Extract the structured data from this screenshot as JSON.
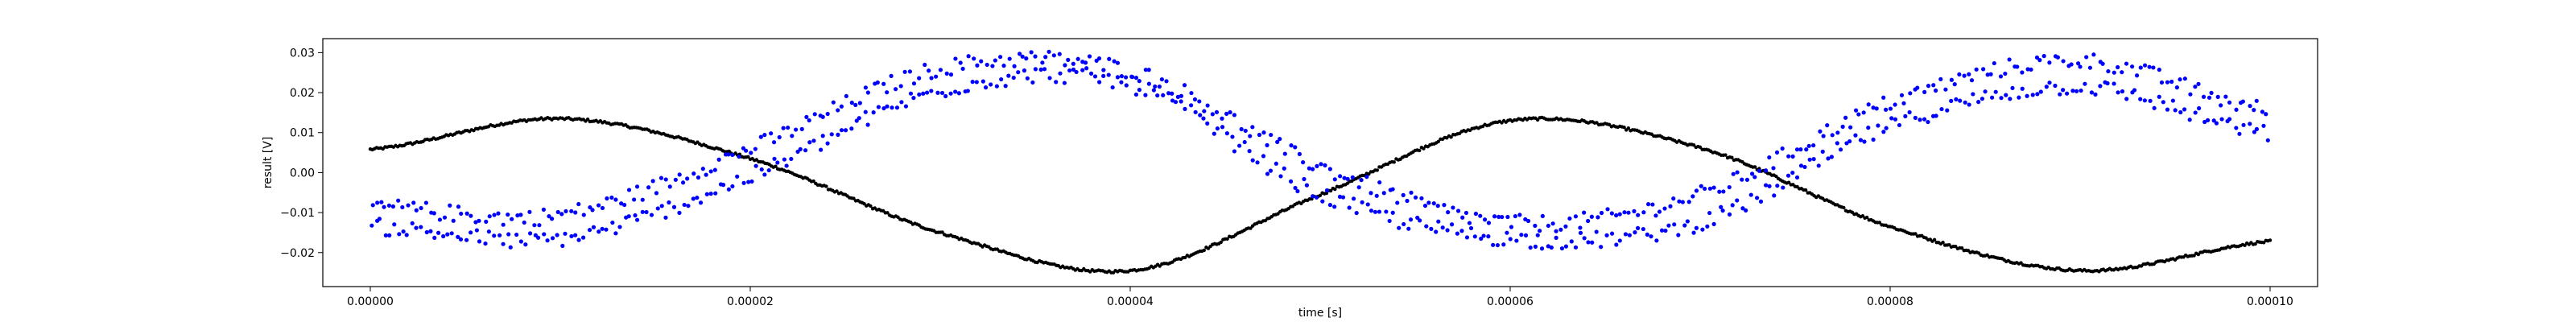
{
  "chart_data": {
    "type": "scatter",
    "title": "",
    "xlabel": "time [s]",
    "ylabel": "result [V]",
    "xlim": [
      -2.5e-06,
      0.0001025
    ],
    "ylim": [
      -0.0285,
      0.0335
    ],
    "grid": false,
    "x_ticks": [
      0,
      2e-05,
      4e-05,
      6e-05,
      8e-05,
      0.0001
    ],
    "x_tick_labels": [
      "0.00000",
      "0.00002",
      "0.00004",
      "0.00006",
      "0.00008",
      "0.00010"
    ],
    "y_ticks": [
      -0.02,
      -0.01,
      0.0,
      0.01,
      0.02,
      0.03
    ],
    "y_tick_labels": [
      "−0.02",
      "−0.01",
      "0.00",
      "0.01",
      "0.02",
      "0.03"
    ],
    "series": [
      {
        "color": "#000000",
        "marker": "dot",
        "t_start": 0,
        "t_end": 0.0001,
        "x": [
          0,
          1e-05,
          2e-05,
          3e-05,
          4e-05,
          5e-05,
          6e-05,
          7e-05,
          8e-05,
          9e-05,
          0.0001
        ],
        "y": [
          0.0058,
          0.0135,
          0.0035,
          -0.015,
          -0.0245,
          -0.0055,
          0.013,
          0.0062,
          -0.0135,
          -0.0245,
          -0.0172
        ]
      },
      {
        "color": "#0000ff",
        "marker": "dot",
        "t_start": 0,
        "t_end": 0.0001,
        "band_upper": {
          "x": [
            0,
            1e-05,
            2e-05,
            3e-05,
            4e-05,
            5e-05,
            6e-05,
            7e-05,
            8e-05,
            9e-05,
            0.0001
          ],
          "y": [
            -0.0085,
            -0.0105,
            0.006,
            0.026,
            0.0255,
            0.0015,
            -0.0125,
            -0.0055,
            0.0175,
            0.028,
            0.0155
          ]
        },
        "band_lower": {
          "x": [
            0,
            1e-05,
            2e-05,
            3e-05,
            4e-05,
            5e-05,
            6e-05,
            7e-05,
            8e-05,
            9e-05,
            0.0001
          ],
          "y": [
            -0.0135,
            -0.0165,
            -0.001,
            0.0205,
            0.022,
            -0.0055,
            -0.0165,
            -0.0125,
            0.0115,
            0.0215,
            0.0095
          ]
        }
      }
    ]
  }
}
